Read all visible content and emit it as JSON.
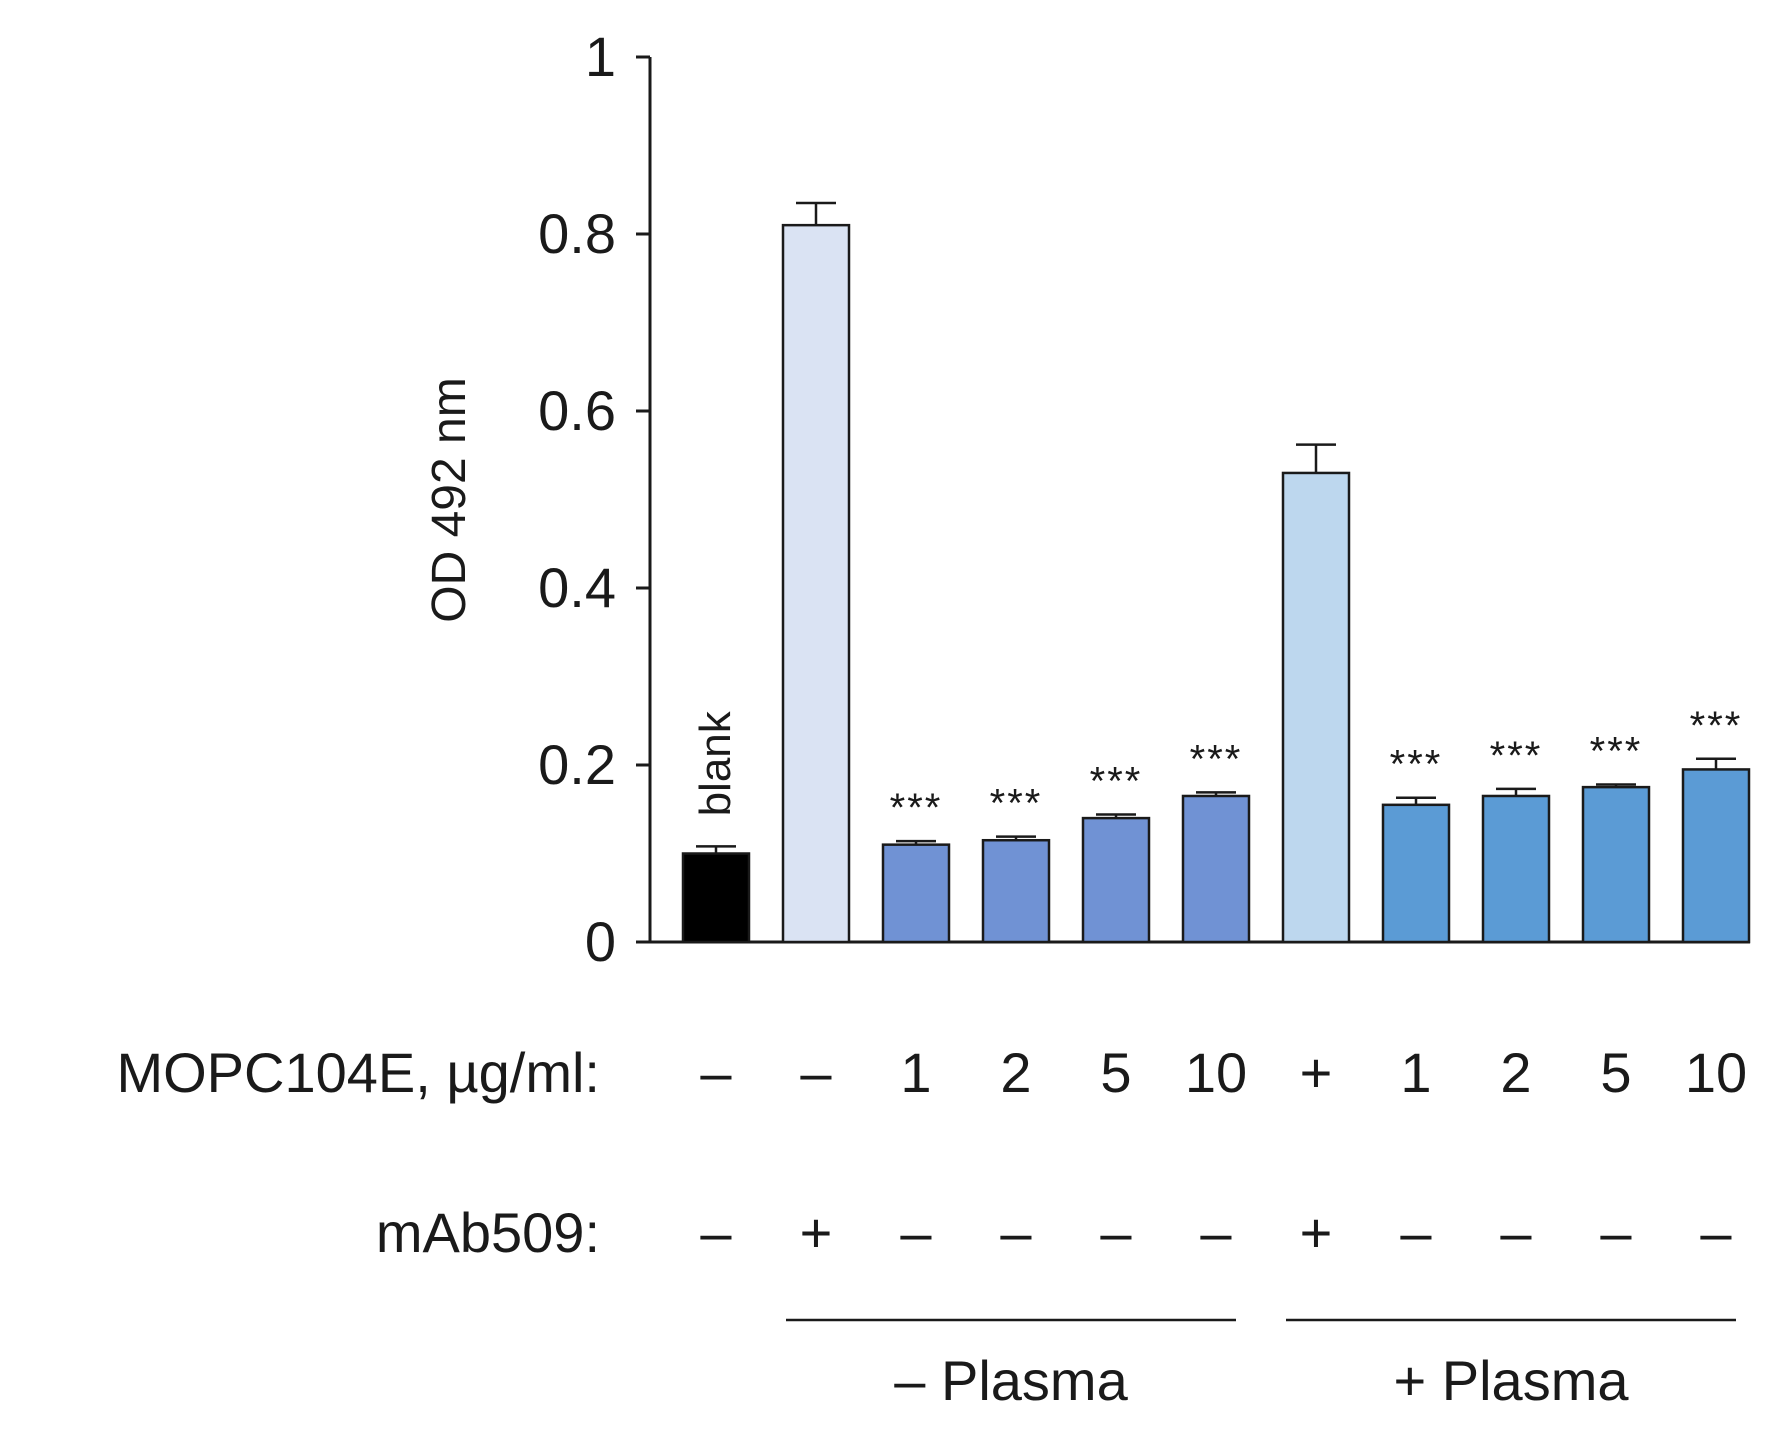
{
  "chart_data": {
    "type": "bar",
    "ylabel": "OD 492 nm",
    "ylim": [
      0,
      1
    ],
    "yticks": [
      0,
      0.2,
      0.4,
      0.6,
      0.8,
      1
    ],
    "ytick_labels": [
      "0",
      "0.2",
      "0.4",
      "0.6",
      "0.8",
      "1"
    ],
    "grid": false,
    "bars": [
      {
        "value": 0.1,
        "error": 0.008,
        "color": "#000000",
        "annotation": "",
        "inside_label": "blank"
      },
      {
        "value": 0.81,
        "error": 0.025,
        "color": "#dae3f3",
        "annotation": "",
        "inside_label": ""
      },
      {
        "value": 0.11,
        "error": 0.004,
        "color": "#7092d4",
        "annotation": "***",
        "inside_label": ""
      },
      {
        "value": 0.115,
        "error": 0.004,
        "color": "#7092d4",
        "annotation": "***",
        "inside_label": ""
      },
      {
        "value": 0.14,
        "error": 0.004,
        "color": "#7092d4",
        "annotation": "***",
        "inside_label": ""
      },
      {
        "value": 0.165,
        "error": 0.004,
        "color": "#7092d4",
        "annotation": "***",
        "inside_label": ""
      },
      {
        "value": 0.53,
        "error": 0.032,
        "color": "#bdd7ee",
        "annotation": "",
        "inside_label": ""
      },
      {
        "value": 0.155,
        "error": 0.008,
        "color": "#5b9bd5",
        "annotation": "***",
        "inside_label": ""
      },
      {
        "value": 0.165,
        "error": 0.008,
        "color": "#5b9bd5",
        "annotation": "***",
        "inside_label": ""
      },
      {
        "value": 0.175,
        "error": 0.003,
        "color": "#5b9bd5",
        "annotation": "***",
        "inside_label": ""
      },
      {
        "value": 0.195,
        "error": 0.012,
        "color": "#5b9bd5",
        "annotation": "***",
        "inside_label": ""
      }
    ],
    "rows": [
      {
        "label": "MOPC104E,  µg/ml:",
        "cells": [
          "–",
          "–",
          "1",
          "2",
          "5",
          "10",
          "+",
          "1",
          "2",
          "5",
          "10"
        ]
      },
      {
        "label": "mAb509:",
        "cells": [
          "–",
          "+",
          "–",
          "–",
          "–",
          "–",
          "+",
          "–",
          "–",
          "–",
          "–"
        ]
      }
    ],
    "groups": [
      {
        "label": "– Plasma",
        "from": 1,
        "to": 5
      },
      {
        "label": "+ Plasma",
        "from": 6,
        "to": 10
      }
    ]
  }
}
